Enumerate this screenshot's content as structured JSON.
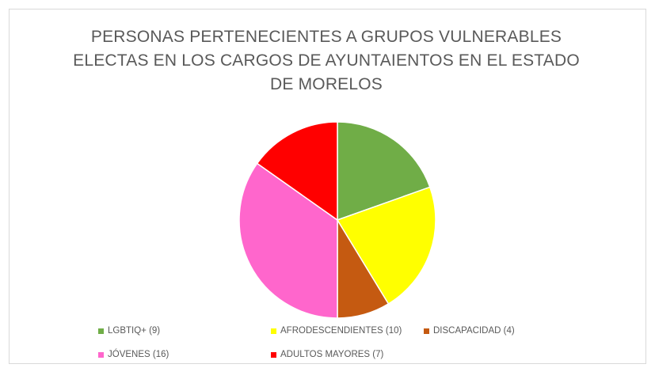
{
  "chart_data": {
    "type": "pie",
    "title_lines": [
      "PERSONAS PERTENECIENTES A GRUPOS VULNERABLES",
      "ELECTAS EN LOS CARGOS DE AYUNTAIENTOS EN EL ESTADO",
      "DE MORELOS"
    ],
    "slices": [
      {
        "label": "LGBTIQ+ (9)",
        "value": 9,
        "color": "#70ad47"
      },
      {
        "label": "AFRODESCENDIENTES (10)",
        "value": 10,
        "color": "#ffff00"
      },
      {
        "label": "DISCAPACIDAD (4)",
        "value": 4,
        "color": "#c55a11"
      },
      {
        "label": "JÓVENES (16)",
        "value": 16,
        "color": "#ff66cc"
      },
      {
        "label": "ADULTOS MAYORES (7)",
        "value": 7,
        "color": "#ff0000"
      }
    ],
    "legend_position": "bottom"
  }
}
